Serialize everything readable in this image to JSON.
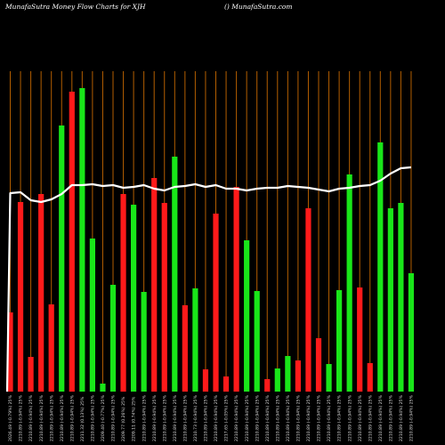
{
  "header": {
    "title": "MunafaSutra  Money Flow  Charts for XJH",
    "site": "() MunafaSutra.com"
  },
  "chart_data": {
    "type": "bar",
    "title": "MunafaSutra  Money Flow  Charts for XJH",
    "categories": [
      "2026.49 (-0.79%) 25%",
      "2210.89 (-0.94%) 25%",
      "2210.89 (-0.94%) 25%",
      "2210.89 (-0.94%) 25%",
      "2210.89 (-0.94%) 25%",
      "2210.89 (-0.94%) 25%",
      "2210.89 (-0.94%) 25%",
      "2211.32 (0.13%) 25%",
      "2210.89 (-0.94%) 25%",
      "2209.40 (-0.77%) 25%",
      "2210.89 (-0.94%) 25%",
      "2209.77 (0.26%) 25%",
      "2209.11 (0.74%) 25%",
      "2210.89 (-0.94%) 25%",
      "2210.89 (-0.94%) 25%",
      "2210.89 (-0.94%) 25%",
      "2210.89 (-0.94%) 25%",
      "2210.89 (-0.94%) 25%",
      "2210.73 (-0.94%) 25%",
      "2210.89 (-0.94%) 25%",
      "2210.89 (-0.94%) 25%",
      "2217.65 (-0.05%) 25%",
      "2210.89 (-0.94%) 25%",
      "2210.89 (-0.94%) 25%",
      "2210.89 (-0.94%) 25%",
      "2210.89 (-0.94%) 25%",
      "2210.89 (-0.94%) 25%",
      "2210.89 (-0.94%) 25%",
      "2210.89 (-0.94%) 25%",
      "2210.89 (-0.94%) 25%",
      "2210.89 (-0.94%) 25%",
      "2210.89 (-0.94%) 25%",
      "2210.89 (-0.94%) 25%",
      "2210.89 (-0.94%) 25%",
      "2210.89 (-0.94%) 25%",
      "2210.89 (-0.94%) 25%",
      "2210.89 (-0.94%) 25%",
      "2210.89 (-0.94%) 25%",
      "2210.89 (-0.94%) 25%",
      "2210.89 (-0.94%) 25%"
    ],
    "values": [
      89,
      213,
      39,
      222,
      98,
      299,
      337,
      341,
      172,
      9,
      120,
      222,
      210,
      112,
      240,
      212,
      264,
      97,
      116,
      25,
      200,
      17,
      230,
      170,
      113,
      14,
      26,
      40,
      35,
      206,
      60,
      31,
      114,
      244,
      117,
      32,
      280,
      206,
      212,
      133
    ],
    "colors": [
      "red",
      "red",
      "red",
      "red",
      "red",
      "green",
      "red",
      "green",
      "green",
      "green",
      "green",
      "red",
      "green",
      "green",
      "red",
      "red",
      "green",
      "red",
      "green",
      "red",
      "red",
      "red",
      "red",
      "green",
      "green",
      "red",
      "green",
      "green",
      "red",
      "red",
      "red",
      "green",
      "green",
      "green",
      "red",
      "red",
      "green",
      "green",
      "green",
      "green"
    ],
    "line": [
      223,
      224,
      215,
      213,
      216,
      222,
      232,
      232,
      233,
      231,
      232,
      229,
      230,
      232,
      228,
      226,
      230,
      231,
      233,
      230,
      232,
      228,
      228,
      226,
      228,
      229,
      229,
      231,
      230,
      229,
      227,
      225,
      228,
      229,
      231,
      232,
      237,
      245,
      251,
      252
    ],
    "ylim": [
      0,
      420
    ],
    "grid": true,
    "bar_colors": {
      "red": "#ff1a1a",
      "green": "#19e619"
    },
    "grid_color": "#b35e00",
    "line_color": "#ffffff",
    "background": "#000000"
  }
}
